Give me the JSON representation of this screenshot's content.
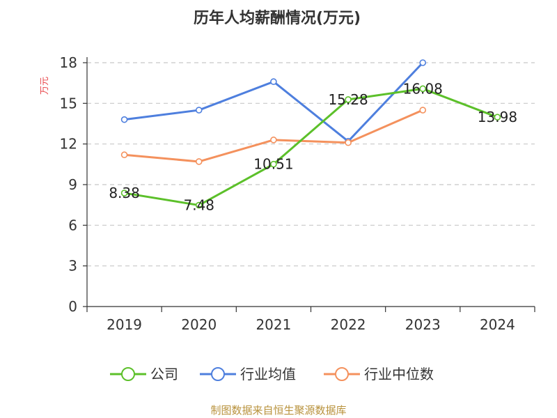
{
  "chart_data": {
    "type": "line",
    "title": "历年人均薪酬情况(万元)",
    "ylabel": "万元",
    "xlabel": "",
    "categories": [
      "2019",
      "2020",
      "2021",
      "2022",
      "2023",
      "2024"
    ],
    "ylim": [
      0,
      18
    ],
    "yticks": [
      0,
      3,
      6,
      9,
      12,
      15,
      18
    ],
    "grid": true,
    "legend_position": "bottom",
    "series": [
      {
        "name": "公司",
        "color": "#5cc02a",
        "values": [
          8.38,
          7.48,
          10.51,
          15.28,
          16.08,
          13.98
        ],
        "labels": [
          "8.38",
          "7.48",
          "10.51",
          "15.28",
          "16.08",
          "13.98"
        ]
      },
      {
        "name": "行业均值",
        "color": "#4e7fde",
        "values": [
          13.8,
          14.5,
          16.6,
          12.2,
          18.0,
          null
        ]
      },
      {
        "name": "行业中位数",
        "color": "#f4915d",
        "values": [
          11.2,
          10.7,
          12.3,
          12.1,
          14.5,
          null
        ]
      }
    ]
  },
  "source": "制图数据来自恒生聚源数据库"
}
